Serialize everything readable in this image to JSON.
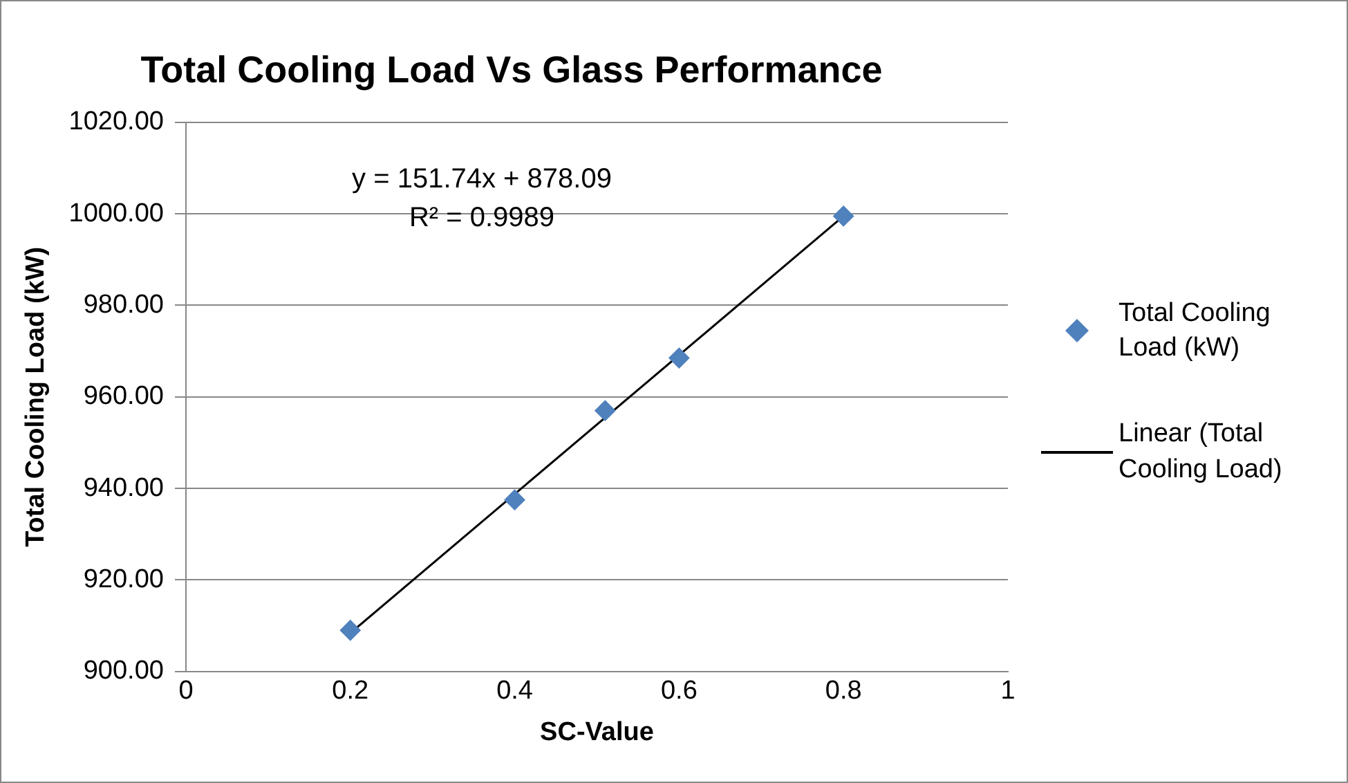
{
  "chart_data": {
    "type": "scatter",
    "title": "Total Cooling Load Vs Glass Performance",
    "xlabel": "SC-Value",
    "ylabel": "Total Cooling Load (kW)",
    "x": [
      0.2,
      0.4,
      0.51,
      0.6,
      0.8
    ],
    "series": [
      {
        "name": "Total Cooling Load (kW)",
        "color": "#4f81bd",
        "values": [
          909,
          937.5,
          957,
          968.5,
          999.5
        ],
        "marker": "diamond"
      },
      {
        "name": "Linear (Total Cooling Load)",
        "type": "line",
        "color": "#000000",
        "x": [
          0.2,
          0.8
        ],
        "values": [
          908.4,
          999.5
        ],
        "marker": "none",
        "line_style": "solid"
      }
    ],
    "xlim": [
      0,
      1
    ],
    "xticks": [
      0,
      0.2,
      0.4,
      0.6,
      0.8,
      1
    ],
    "ylim": [
      900,
      1020
    ],
    "yticks": [
      {
        "value": 900,
        "label": "900.00"
      },
      {
        "value": 920,
        "label": "920.00"
      },
      {
        "value": 940,
        "label": "940.00"
      },
      {
        "value": 960,
        "label": "960.00"
      },
      {
        "value": 980,
        "label": "980.00"
      },
      {
        "value": 1000,
        "label": "1000.00"
      },
      {
        "value": 1020,
        "label": "1020.00"
      }
    ],
    "grid": "y",
    "legend": "right",
    "annotations": [
      "y = 151.74x + 878.09",
      "R² = 0.9989"
    ]
  }
}
